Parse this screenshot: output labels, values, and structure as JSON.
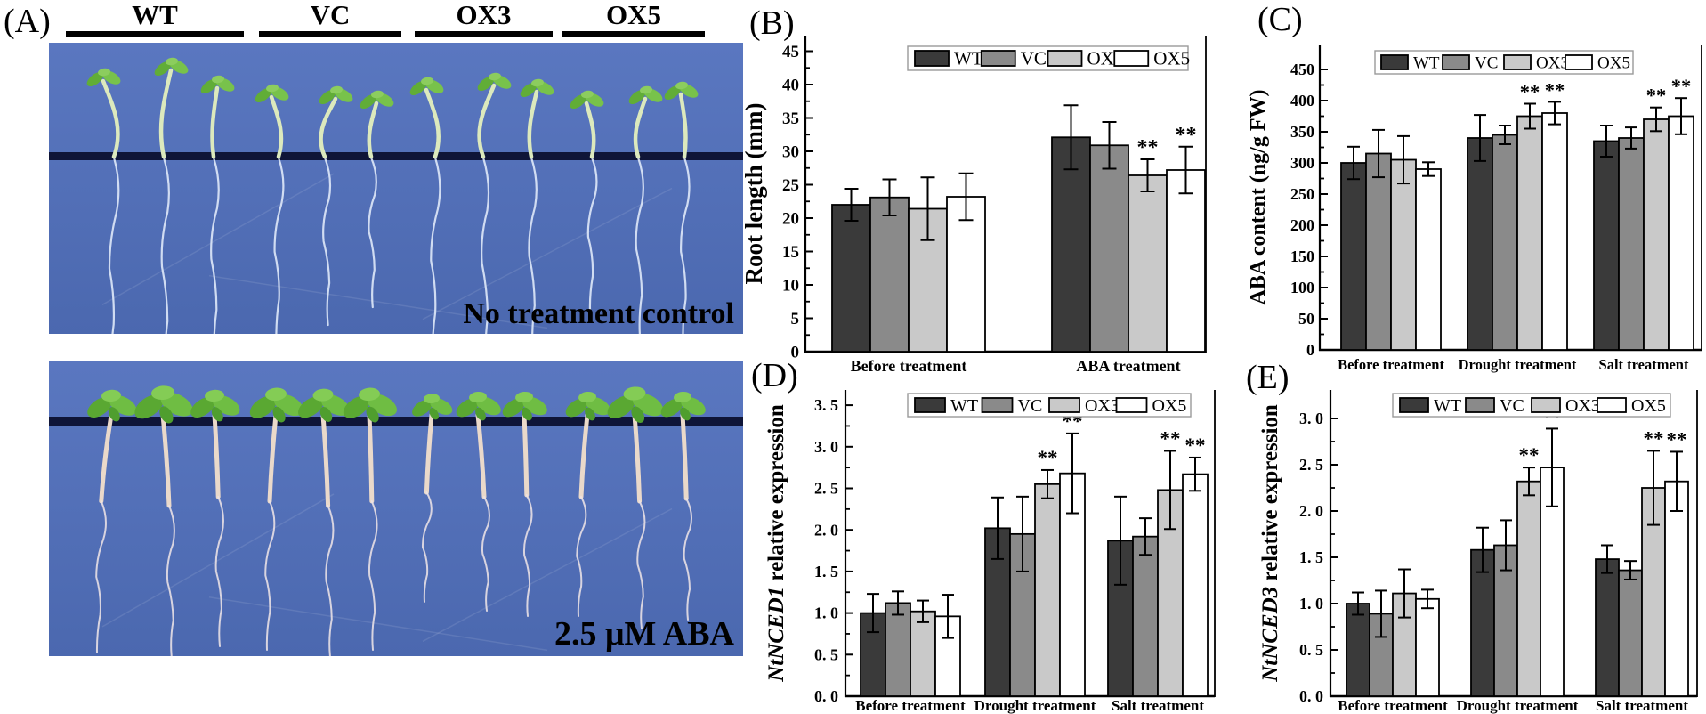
{
  "panel_a": {
    "label": "(A)",
    "groups": [
      "WT",
      "VC",
      "OX3",
      "OX5"
    ],
    "photos": [
      {
        "caption": "No treatment control"
      },
      {
        "caption": "2.5 μM ABA"
      }
    ]
  },
  "colors": {
    "bar_series": [
      "#3a3a3a",
      "#8a8a8a",
      "#c9c9c9",
      "#ffffff"
    ],
    "bar_stroke": "#000000",
    "photo_background_top": "#5a77c0",
    "photo_background_bottom": "#4b68af",
    "photo_line": "#0c1030",
    "leaf_green": "#6ab83e",
    "stem_light": "#dce9bd",
    "stem_pink": "#ead9ca",
    "root_white": "#e3ecfb"
  },
  "chart_data": [
    {
      "id": "B",
      "panel_label": "(B)",
      "type": "bar",
      "ylabel_parts": [
        {
          "text": "Root length (mm)",
          "italic": false
        }
      ],
      "categories": [
        "Before treatment",
        "ABA treatment"
      ],
      "ylim": [
        0,
        45
      ],
      "ytick_step": 5,
      "decimals": 0,
      "grid": false,
      "legend_position": "top",
      "legend": [
        "WT",
        "VC",
        "OX3",
        "OX5"
      ],
      "series": [
        {
          "name": "WT",
          "values": [
            22.0,
            32.1
          ],
          "errors": [
            2.4,
            4.8
          ],
          "sig": [
            "",
            ""
          ]
        },
        {
          "name": "VC",
          "values": [
            23.1,
            30.9
          ],
          "errors": [
            2.7,
            3.5
          ],
          "sig": [
            "",
            ""
          ]
        },
        {
          "name": "OX3",
          "values": [
            21.4,
            26.4
          ],
          "errors": [
            4.7,
            2.4
          ],
          "sig": [
            "",
            "**"
          ]
        },
        {
          "name": "OX5",
          "values": [
            23.2,
            27.2
          ],
          "errors": [
            3.5,
            3.5
          ],
          "sig": [
            "",
            "**"
          ]
        }
      ]
    },
    {
      "id": "C",
      "panel_label": "(C)",
      "type": "bar",
      "ylabel_parts": [
        {
          "text": "ABA content (ng/g FW)",
          "italic": false
        }
      ],
      "categories": [
        "Before treatment",
        "Drought treatment",
        "Salt treatment"
      ],
      "ylim": [
        0,
        450
      ],
      "ytick_step": 50,
      "decimals": 0,
      "grid": false,
      "legend_position": "top",
      "legend": [
        "WT",
        "VC",
        "OX3",
        "OX5"
      ],
      "series": [
        {
          "name": "WT",
          "values": [
            300,
            340,
            335
          ],
          "errors": [
            26,
            37,
            25
          ],
          "sig": [
            "",
            "",
            ""
          ]
        },
        {
          "name": "VC",
          "values": [
            315,
            345,
            340
          ],
          "errors": [
            38,
            15,
            17
          ],
          "sig": [
            "",
            "",
            ""
          ]
        },
        {
          "name": "OX3",
          "values": [
            305,
            375,
            370
          ],
          "errors": [
            38,
            20,
            19
          ],
          "sig": [
            "",
            "**",
            "**"
          ]
        },
        {
          "name": "OX5",
          "values": [
            290,
            380,
            375
          ],
          "errors": [
            11,
            18,
            29
          ],
          "sig": [
            "",
            "**",
            "**"
          ]
        }
      ]
    },
    {
      "id": "D",
      "panel_label": "(D)",
      "type": "bar",
      "ylabel_parts": [
        {
          "text": "NtNCED1",
          "italic": true
        },
        {
          "text": " relative expression",
          "italic": false
        }
      ],
      "categories": [
        "Before treatment",
        "Drought treatment",
        "Salt treatment"
      ],
      "ylim": [
        0,
        3.5
      ],
      "ytick_step": 0.5,
      "decimals": 1,
      "grid": false,
      "legend_position": "top",
      "legend": [
        "WT",
        "VC",
        "OX3",
        "OX5"
      ],
      "series": [
        {
          "name": "WT",
          "values": [
            1.0,
            2.02,
            1.87
          ],
          "errors": [
            0.23,
            0.37,
            0.53
          ],
          "sig": [
            "",
            "",
            ""
          ]
        },
        {
          "name": "VC",
          "values": [
            1.12,
            1.95,
            1.92
          ],
          "errors": [
            0.14,
            0.45,
            0.22
          ],
          "sig": [
            "",
            "",
            ""
          ]
        },
        {
          "name": "OX3",
          "values": [
            1.02,
            2.55,
            2.48
          ],
          "errors": [
            0.13,
            0.17,
            0.47
          ],
          "sig": [
            "",
            "**",
            "**"
          ]
        },
        {
          "name": "OX5",
          "values": [
            0.96,
            2.68,
            2.67
          ],
          "errors": [
            0.26,
            0.48,
            0.2
          ],
          "sig": [
            "",
            "**",
            "**"
          ]
        }
      ]
    },
    {
      "id": "E",
      "panel_label": "(E)",
      "type": "bar",
      "ylabel_parts": [
        {
          "text": "NtNCED3",
          "italic": true
        },
        {
          "text": " relative expression",
          "italic": false
        }
      ],
      "categories": [
        "Before treatment",
        "Drought treatment",
        "Salt treatment"
      ],
      "ylim": [
        0,
        3.0
      ],
      "ytick_step": 0.5,
      "decimals": 1,
      "grid": false,
      "legend_position": "top",
      "legend": [
        "WT",
        "VC",
        "OX3",
        "OX5"
      ],
      "series": [
        {
          "name": "WT",
          "values": [
            1.0,
            1.58,
            1.48
          ],
          "errors": [
            0.12,
            0.24,
            0.15
          ],
          "sig": [
            "",
            "",
            ""
          ]
        },
        {
          "name": "VC",
          "values": [
            0.89,
            1.63,
            1.36
          ],
          "errors": [
            0.25,
            0.27,
            0.1
          ],
          "sig": [
            "",
            "",
            ""
          ]
        },
        {
          "name": "OX3",
          "values": [
            1.11,
            2.32,
            2.25
          ],
          "errors": [
            0.26,
            0.15,
            0.4
          ],
          "sig": [
            "",
            "**",
            "**"
          ]
        },
        {
          "name": "OX5",
          "values": [
            1.05,
            2.47,
            2.32
          ],
          "errors": [
            0.1,
            0.42,
            0.32
          ],
          "sig": [
            "",
            "**",
            "**"
          ]
        }
      ]
    }
  ]
}
